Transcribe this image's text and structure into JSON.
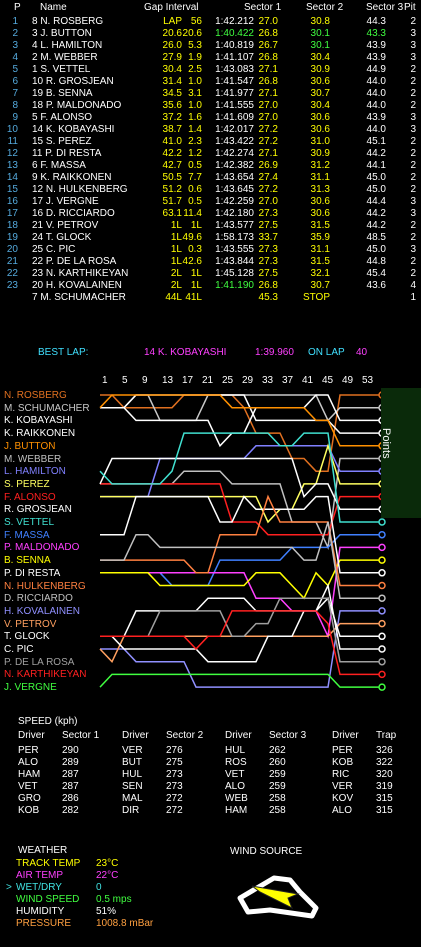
{
  "header": {
    "p": "P",
    "name": "Name",
    "gap_interval": "Gap Interval",
    "sector1": "Sector 1",
    "sector2": "Sector 2",
    "sector3": "Sector 3",
    "pit": "Pit"
  },
  "timing_rows": [
    {
      "pos": "1",
      "drv": "8 N. ROSBERG",
      "gap": "LAP",
      "int": "56",
      "lap": "1:42.212",
      "s1": "27.0",
      "s2": "30.8",
      "s3": "44.3",
      "pit": "2"
    },
    {
      "pos": "2",
      "drv": "3 J. BUTTON",
      "gap": "20.6",
      "int": "20.6",
      "lap": "1:40.422",
      "s1": "26.8",
      "s2": "30.1",
      "s3": "43.3",
      "pit": "3"
    },
    {
      "pos": "3",
      "drv": "4 L. HAMILTON",
      "gap": "26.0",
      "int": "5.3",
      "lap": "1:40.819",
      "s1": "26.7",
      "s2": "30.1",
      "s3": "43.9",
      "pit": "3"
    },
    {
      "pos": "4",
      "drv": "2 M. WEBBER",
      "gap": "27.9",
      "int": "1.9",
      "lap": "1:41.107",
      "s1": "26.8",
      "s2": "30.4",
      "s3": "43.9",
      "pit": "3"
    },
    {
      "pos": "5",
      "drv": "1 S. VETTEL",
      "gap": "30.4",
      "int": "2.5",
      "lap": "1:43.083",
      "s1": "27.1",
      "s2": "30.9",
      "s3": "44.9",
      "pit": "2"
    },
    {
      "pos": "6",
      "drv": "10 R. GROSJEAN",
      "gap": "31.4",
      "int": "1.0",
      "lap": "1:41.547",
      "s1": "26.8",
      "s2": "30.6",
      "s3": "44.0",
      "pit": "2"
    },
    {
      "pos": "7",
      "drv": "19 B. SENNA",
      "gap": "34.5",
      "int": "3.1",
      "lap": "1:41.977",
      "s1": "27.1",
      "s2": "30.7",
      "s3": "44.0",
      "pit": "2"
    },
    {
      "pos": "8",
      "drv": "18 P. MALDONADO",
      "gap": "35.6",
      "int": "1.0",
      "lap": "1:41.555",
      "s1": "27.0",
      "s2": "30.4",
      "s3": "44.0",
      "pit": "2"
    },
    {
      "pos": "9",
      "drv": "5 F. ALONSO",
      "gap": "37.2",
      "int": "1.6",
      "lap": "1:41.609",
      "s1": "27.0",
      "s2": "30.6",
      "s3": "43.9",
      "pit": "3"
    },
    {
      "pos": "10",
      "drv": "14 K. KOBAYASHI",
      "gap": "38.7",
      "int": "1.4",
      "lap": "1:42.017",
      "s1": "27.2",
      "s2": "30.6",
      "s3": "44.0",
      "pit": "3"
    },
    {
      "pos": "11",
      "drv": "15 S. PEREZ",
      "gap": "41.0",
      "int": "2.3",
      "lap": "1:43.422",
      "s1": "27.2",
      "s2": "31.0",
      "s3": "45.1",
      "pit": "2"
    },
    {
      "pos": "12",
      "drv": "11 P. DI RESTA",
      "gap": "42.2",
      "int": "1.2",
      "lap": "1:42.274",
      "s1": "27.1",
      "s2": "30.9",
      "s3": "44.2",
      "pit": "2"
    },
    {
      "pos": "13",
      "drv": "6 F. MASSA",
      "gap": "42.7",
      "int": "0.5",
      "lap": "1:42.382",
      "s1": "26.9",
      "s2": "31.2",
      "s3": "44.1",
      "pit": "2"
    },
    {
      "pos": "14",
      "drv": "9 K. RAIKKONEN",
      "gap": "50.5",
      "int": "7.7",
      "lap": "1:43.654",
      "s1": "27.4",
      "s2": "31.1",
      "s3": "45.0",
      "pit": "2"
    },
    {
      "pos": "15",
      "drv": "12 N. HULKENBERG",
      "gap": "51.2",
      "int": "0.6",
      "lap": "1:43.645",
      "s1": "27.2",
      "s2": "31.3",
      "s3": "45.0",
      "pit": "2"
    },
    {
      "pos": "16",
      "drv": "17 J. VERGNE",
      "gap": "51.7",
      "int": "0.5",
      "lap": "1:42.259",
      "s1": "27.0",
      "s2": "30.6",
      "s3": "44.4",
      "pit": "3"
    },
    {
      "pos": "17",
      "drv": "16 D. RICCIARDO",
      "gap": "63.1",
      "int": "11.4",
      "lap": "1:42.180",
      "s1": "27.3",
      "s2": "30.6",
      "s3": "44.2",
      "pit": "3"
    },
    {
      "pos": "18",
      "drv": "21 V. PETROV",
      "gap": "1L",
      "int": "1L",
      "lap": "1:43.577",
      "s1": "27.5",
      "s2": "31.5",
      "s3": "44.2",
      "pit": "2"
    },
    {
      "pos": "19",
      "drv": "24 T. GLOCK",
      "gap": "1L",
      "int": "49.6",
      "lap": "1:58.173",
      "s1": "33.7",
      "s2": "35.9",
      "s3": "48.5",
      "pit": "2"
    },
    {
      "pos": "20",
      "drv": "25 C. PIC",
      "gap": "1L",
      "int": "0.3",
      "lap": "1:43.555",
      "s1": "27.3",
      "s2": "31.1",
      "s3": "45.0",
      "pit": "3"
    },
    {
      "pos": "21",
      "drv": "22 P. DE LA ROSA",
      "gap": "1L",
      "int": "42.6",
      "lap": "1:43.844",
      "s1": "27.3",
      "s2": "31.5",
      "s3": "44.8",
      "pit": "2"
    },
    {
      "pos": "22",
      "drv": "23 N. KARTHIKEYAN",
      "gap": "2L",
      "int": "1L",
      "lap": "1:45.128",
      "s1": "27.5",
      "s2": "32.1",
      "s3": "45.4",
      "pit": "2"
    },
    {
      "pos": "23",
      "drv": "20 H. KOVALAINEN",
      "gap": "2L",
      "int": "1L",
      "lap": "1:41.190",
      "s1": "26.8",
      "s2": "30.7",
      "s3": "43.6",
      "pit": "4"
    },
    {
      "pos": "",
      "drv": "7 M. SCHUMACHER",
      "gap": "44L",
      "int": "41L",
      "lap": "",
      "s1": "45.3",
      "s2": "STOP",
      "s3": "",
      "pit": "1"
    }
  ],
  "best_lap": {
    "label": "BEST LAP:",
    "driver": "14 K. KOBAYASHI",
    "time": "1:39.960",
    "on_lap_label": "ON LAP",
    "lap": "40"
  },
  "chart_data": {
    "type": "line",
    "title": "",
    "xlabel": "Lap",
    "x_ticks": [
      "1",
      "5",
      "9",
      "13",
      "17",
      "21",
      "25",
      "29",
      "33",
      "37",
      "41",
      "45",
      "49",
      "53"
    ],
    "side_label": "Points",
    "legend": [
      {
        "name": "N. ROSBERG",
        "color": "#e07020"
      },
      {
        "name": "M. SCHUMACHER",
        "color": "#c8c8c8"
      },
      {
        "name": "K. KOBAYASHI",
        "color": "#ffffff"
      },
      {
        "name": "K. RAIKKONEN",
        "color": "#ffffff"
      },
      {
        "name": "J. BUTTON",
        "color": "#ff9000"
      },
      {
        "name": "M. WEBBER",
        "color": "#c0c0c0"
      },
      {
        "name": "L. HAMILTON",
        "color": "#8080ff"
      },
      {
        "name": "S. PEREZ",
        "color": "#ffff60"
      },
      {
        "name": "F. ALONSO",
        "color": "#ff2020"
      },
      {
        "name": "R. GROSJEAN",
        "color": "#ffffff"
      },
      {
        "name": "S. VETTEL",
        "color": "#40e0d0"
      },
      {
        "name": "F. MASSA",
        "color": "#4080ff"
      },
      {
        "name": "P. MALDONADO",
        "color": "#ff40ff"
      },
      {
        "name": "B. SENNA",
        "color": "#ffff00"
      },
      {
        "name": "P. DI RESTA",
        "color": "#ffffff"
      },
      {
        "name": "N. HULKENBERG",
        "color": "#ff8040"
      },
      {
        "name": "D. RICCIARDO",
        "color": "#c0c0c0"
      },
      {
        "name": "H. KOVALAINEN",
        "color": "#9090ff"
      },
      {
        "name": "V. PETROV",
        "color": "#ffa060"
      },
      {
        "name": "T. GLOCK",
        "color": "#ffffff"
      },
      {
        "name": "C. PIC",
        "color": "#ffffff"
      },
      {
        "name": "P. DE LA ROSA",
        "color": "#a0a0a0"
      },
      {
        "name": "N. KARTHIKEYAN",
        "color": "#ff2020"
      },
      {
        "name": "J. VERGNE",
        "color": "#40ff40"
      }
    ]
  },
  "speed": {
    "title": "SPEED (kph)",
    "groups": [
      {
        "h1": "Driver",
        "h2": "Sector 1",
        "rows": [
          [
            "PER",
            "290"
          ],
          [
            "ALO",
            "289"
          ],
          [
            "HAM",
            "287"
          ],
          [
            "VET",
            "287"
          ],
          [
            "GRO",
            "286"
          ],
          [
            "KOB",
            "282"
          ]
        ]
      },
      {
        "h1": "Driver",
        "h2": "Sector 2",
        "rows": [
          [
            "VER",
            "276"
          ],
          [
            "BUT",
            "275"
          ],
          [
            "HUL",
            "273"
          ],
          [
            "SEN",
            "273"
          ],
          [
            "MAL",
            "272"
          ],
          [
            "DIR",
            "272"
          ]
        ]
      },
      {
        "h1": "Driver",
        "h2": "Sector 3",
        "rows": [
          [
            "HUL",
            "262"
          ],
          [
            "ROS",
            "260"
          ],
          [
            "VET",
            "259"
          ],
          [
            "ALO",
            "259"
          ],
          [
            "WEB",
            "258"
          ],
          [
            "HAM",
            "258"
          ]
        ]
      },
      {
        "h1": "Driver",
        "h2": "Trap",
        "rows": [
          [
            "PER",
            "326"
          ],
          [
            "KOB",
            "322"
          ],
          [
            "RIC",
            "320"
          ],
          [
            "VER",
            "319"
          ],
          [
            "KOV",
            "315"
          ],
          [
            "ALO",
            "315"
          ]
        ]
      }
    ]
  },
  "weather": {
    "title": "WEATHER",
    "items": [
      {
        "label": "TRACK TEMP",
        "value": "23°C",
        "color": "#ffff00"
      },
      {
        "label": "AIR TEMP",
        "value": "22°C",
        "color": "#ff40ff"
      },
      {
        "label": "WET/DRY",
        "value": "0",
        "color": "#40e0e0"
      },
      {
        "label": "WIND SPEED",
        "value": "0.5 mps",
        "color": "#40ff40"
      },
      {
        "label": "HUMIDITY",
        "value": "51%",
        "color": "#ffffff"
      },
      {
        "label": "PRESSURE",
        "value": "1008.8 mBar",
        "color": "#ffa040"
      }
    ],
    "arrow": "> ",
    "wind_source": "WIND SOURCE"
  }
}
